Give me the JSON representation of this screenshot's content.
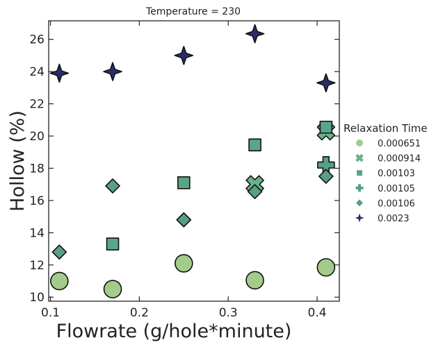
{
  "chart_data": {
    "type": "scatter",
    "title": "Temperature = 230",
    "xlabel": "Flowrate (g/hole*minute)",
    "ylabel": "Hollow (%)",
    "xlim": [
      0.098,
      0.425
    ],
    "ylim": [
      9.75,
      27.15
    ],
    "xticks": [
      0.1,
      0.2,
      0.3,
      0.4
    ],
    "xtick_labels": [
      "0.1",
      "0.2",
      "0.3",
      "0.4"
    ],
    "yticks": [
      10,
      12,
      14,
      16,
      18,
      20,
      22,
      24,
      26
    ],
    "ytick_labels": [
      "10",
      "12",
      "14",
      "16",
      "18",
      "20",
      "22",
      "24",
      "26"
    ],
    "grid": false,
    "legend_title": "Relaxation Time",
    "legend_position": "right",
    "series": [
      {
        "name": "0.000651",
        "marker": "circle",
        "color": "#a3cc8c",
        "points": [
          {
            "x": 0.11,
            "y": 11.0
          },
          {
            "x": 0.17,
            "y": 10.5
          },
          {
            "x": 0.25,
            "y": 12.1
          },
          {
            "x": 0.33,
            "y": 11.05
          },
          {
            "x": 0.41,
            "y": 11.85
          }
        ]
      },
      {
        "name": "0.000914",
        "marker": "x",
        "color": "#6ab28a",
        "points": [
          {
            "x": 0.33,
            "y": 17.0
          },
          {
            "x": 0.41,
            "y": 20.3
          }
        ]
      },
      {
        "name": "0.00103",
        "marker": "square",
        "color": "#5ba587",
        "points": [
          {
            "x": 0.17,
            "y": 13.3
          },
          {
            "x": 0.25,
            "y": 17.1
          },
          {
            "x": 0.33,
            "y": 19.45
          },
          {
            "x": 0.41,
            "y": 20.55
          }
        ]
      },
      {
        "name": "0.00105",
        "marker": "plus",
        "color": "#57a088",
        "points": [
          {
            "x": 0.41,
            "y": 18.2
          }
        ]
      },
      {
        "name": "0.00106",
        "marker": "diamond",
        "color": "#5a9e84",
        "points": [
          {
            "x": 0.11,
            "y": 12.8
          },
          {
            "x": 0.17,
            "y": 16.9
          },
          {
            "x": 0.25,
            "y": 14.8
          },
          {
            "x": 0.33,
            "y": 16.55
          },
          {
            "x": 0.41,
            "y": 17.5
          }
        ]
      },
      {
        "name": "0.0023",
        "marker": "star4",
        "color": "#2b2d6b",
        "points": [
          {
            "x": 0.11,
            "y": 23.9
          },
          {
            "x": 0.17,
            "y": 24.0
          },
          {
            "x": 0.25,
            "y": 25.0
          },
          {
            "x": 0.33,
            "y": 26.35
          },
          {
            "x": 0.41,
            "y": 23.3
          }
        ]
      }
    ]
  }
}
